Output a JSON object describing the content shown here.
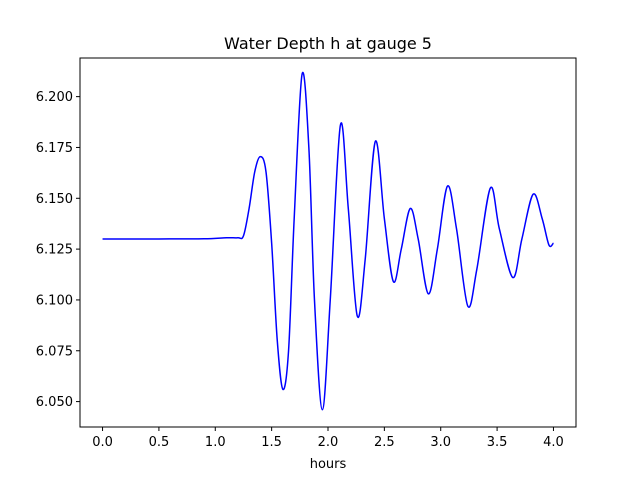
{
  "chart_data": {
    "type": "line",
    "title": "Water Depth h at gauge 5",
    "xlabel": "hours",
    "ylabel": "",
    "xlim": [
      -0.2,
      4.2
    ],
    "ylim": [
      6.0375,
      6.219
    ],
    "grid": false,
    "legend": "none",
    "x_ticks": [
      0.0,
      0.5,
      1.0,
      1.5,
      2.0,
      2.5,
      3.0,
      3.5,
      4.0
    ],
    "x_tick_labels": [
      "0.0",
      "0.5",
      "1.0",
      "1.5",
      "2.0",
      "2.5",
      "3.0",
      "3.5",
      "4.0"
    ],
    "y_ticks": [
      6.05,
      6.075,
      6.1,
      6.125,
      6.15,
      6.175,
      6.2
    ],
    "y_tick_labels": [
      "6.050",
      "6.075",
      "6.100",
      "6.125",
      "6.150",
      "6.175",
      "6.200"
    ],
    "series": [
      {
        "color": "#0000ff",
        "points": [
          [
            0.0,
            6.13
          ],
          [
            0.5,
            6.13
          ],
          [
            0.9,
            6.1301
          ],
          [
            1.1,
            6.1306
          ],
          [
            1.2,
            6.1306
          ],
          [
            1.25,
            6.1315
          ],
          [
            1.3,
            6.145
          ],
          [
            1.35,
            6.163
          ],
          [
            1.4,
            6.1705
          ],
          [
            1.45,
            6.163
          ],
          [
            1.5,
            6.128
          ],
          [
            1.55,
            6.08
          ],
          [
            1.6,
            6.056
          ],
          [
            1.65,
            6.075
          ],
          [
            1.7,
            6.14
          ],
          [
            1.77,
            6.211
          ],
          [
            1.83,
            6.175
          ],
          [
            1.88,
            6.1
          ],
          [
            1.95,
            6.046
          ],
          [
            2.02,
            6.1
          ],
          [
            2.11,
            6.186
          ],
          [
            2.18,
            6.145
          ],
          [
            2.26,
            6.092
          ],
          [
            2.33,
            6.12
          ],
          [
            2.42,
            6.178
          ],
          [
            2.5,
            6.14
          ],
          [
            2.58,
            6.109
          ],
          [
            2.65,
            6.125
          ],
          [
            2.73,
            6.145
          ],
          [
            2.8,
            6.13
          ],
          [
            2.89,
            6.103
          ],
          [
            2.97,
            6.125
          ],
          [
            3.06,
            6.156
          ],
          [
            3.14,
            6.135
          ],
          [
            3.24,
            6.097
          ],
          [
            3.32,
            6.115
          ],
          [
            3.44,
            6.155
          ],
          [
            3.52,
            6.135
          ],
          [
            3.64,
            6.111
          ],
          [
            3.72,
            6.13
          ],
          [
            3.82,
            6.152
          ],
          [
            3.9,
            6.14
          ],
          [
            3.96,
            6.127
          ],
          [
            4.0,
            6.128
          ]
        ]
      }
    ]
  }
}
